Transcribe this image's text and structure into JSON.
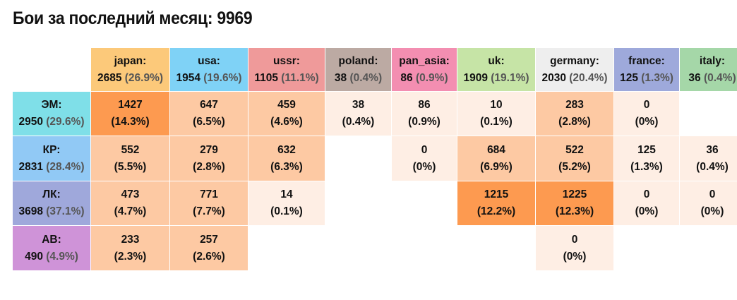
{
  "title": "Бои за последний месяц: 9969",
  "columns": [
    {
      "name": "japan:",
      "count": "2685",
      "pct": "(26.9%)",
      "color": "#fcc97a"
    },
    {
      "name": "usa:",
      "count": "1954",
      "pct": "(19.6%)",
      "color": "#7fd2f6"
    },
    {
      "name": "ussr:",
      "count": "1105",
      "pct": "(11.1%)",
      "color": "#ef9a9a"
    },
    {
      "name": "poland:",
      "count": "38",
      "pct": "(0.4%)",
      "color": "#bcaaa3"
    },
    {
      "name": "pan_asia:",
      "count": "86",
      "pct": "(0.9%)",
      "color": "#f38eb1"
    },
    {
      "name": "uk:",
      "count": "1909",
      "pct": "(19.1%)",
      "color": "#c6e4a6"
    },
    {
      "name": "germany:",
      "count": "2030",
      "pct": "(20.4%)",
      "color": "#eeeeee"
    },
    {
      "name": "france:",
      "count": "125",
      "pct": "(1.3%)",
      "color": "#9ea9db"
    },
    {
      "name": "italy:",
      "count": "36",
      "pct": "(0.4%)",
      "color": "#a5d7a8"
    }
  ],
  "rows": [
    {
      "name": "ЭМ:",
      "count": "2950",
      "pct": "(29.6%)",
      "color": "#7fdfe8",
      "cells": [
        [
          "1427",
          "(14.3%)"
        ],
        [
          "647",
          "(6.5%)"
        ],
        [
          "459",
          "(4.6%)"
        ],
        [
          "38",
          "(0.4%)"
        ],
        [
          "86",
          "(0.9%)"
        ],
        [
          "10",
          "(0.1%)"
        ],
        [
          "283",
          "(2.8%)"
        ],
        [
          "0",
          "(0%)"
        ],
        null
      ]
    },
    {
      "name": "КР:",
      "count": "2831",
      "pct": "(28.4%)",
      "color": "#91c9f5",
      "cells": [
        [
          "552",
          "(5.5%)"
        ],
        [
          "279",
          "(2.8%)"
        ],
        [
          "632",
          "(6.3%)"
        ],
        null,
        [
          "0",
          "(0%)"
        ],
        [
          "684",
          "(6.9%)"
        ],
        [
          "522",
          "(5.2%)"
        ],
        [
          "125",
          "(1.3%)"
        ],
        [
          "36",
          "(0.4%)"
        ]
      ]
    },
    {
      "name": "ЛК:",
      "count": "3698",
      "pct": "(37.1%)",
      "color": "#9fa8db",
      "cells": [
        [
          "473",
          "(4.7%)"
        ],
        [
          "771",
          "(7.7%)"
        ],
        [
          "14",
          "(0.1%)"
        ],
        null,
        null,
        [
          "1215",
          "(12.2%)"
        ],
        [
          "1225",
          "(12.3%)"
        ],
        [
          "0",
          "(0%)"
        ],
        [
          "0",
          "(0%)"
        ]
      ]
    },
    {
      "name": "АВ:",
      "count": "490",
      "pct": "(4.9%)",
      "color": "#cf93d8",
      "cells": [
        [
          "233",
          "(2.3%)"
        ],
        [
          "257",
          "(2.6%)"
        ],
        null,
        null,
        null,
        null,
        [
          "0",
          "(0%)"
        ],
        null,
        null
      ]
    }
  ],
  "heat_colors": {
    "high": "#fd9a50",
    "medium": "#fdc9a3",
    "low": "#feeee4"
  }
}
